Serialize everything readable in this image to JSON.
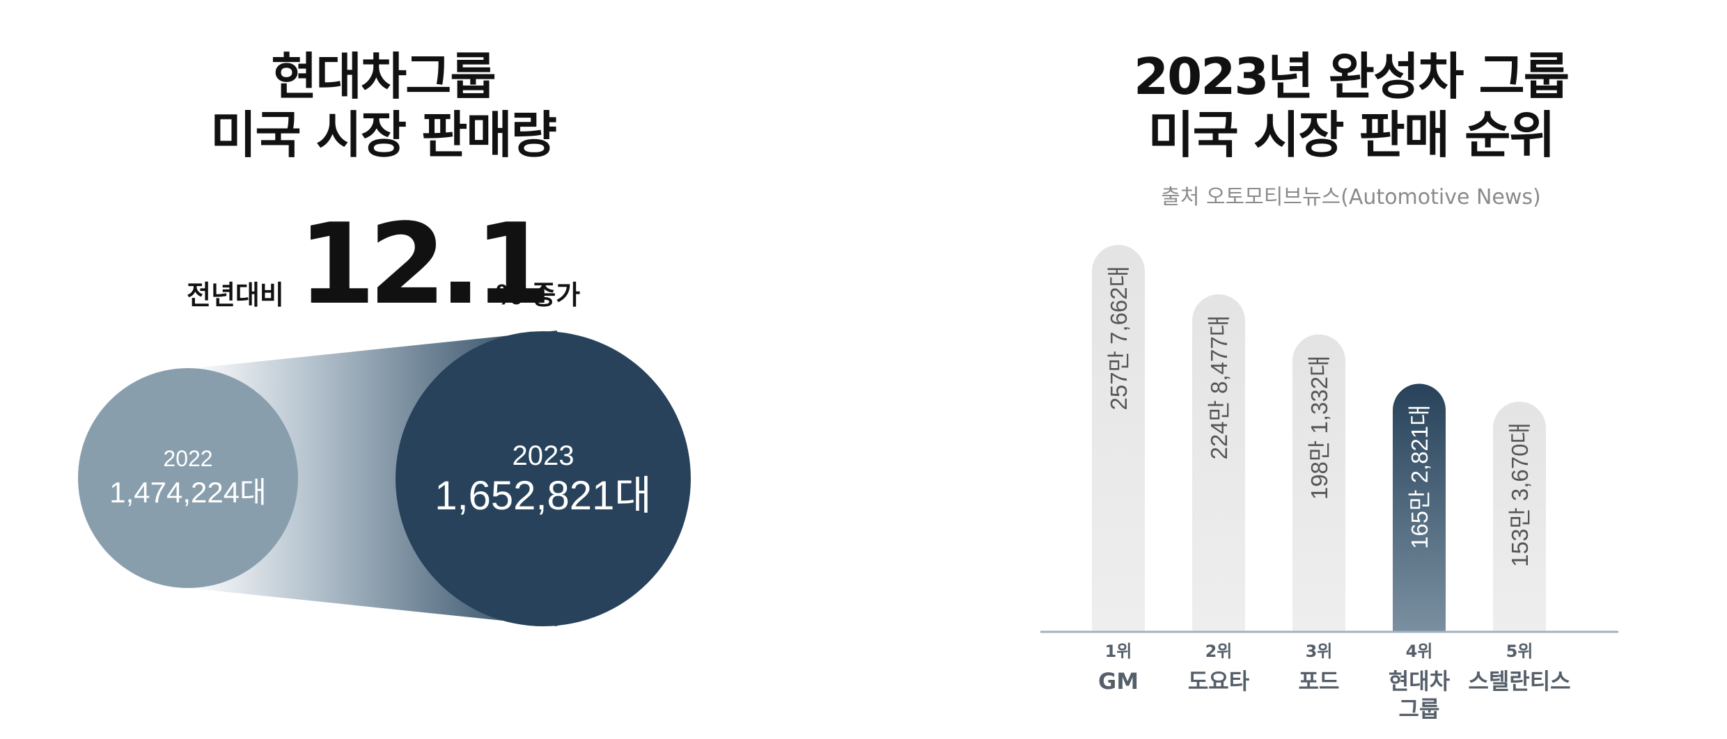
{
  "left_panel": {
    "title_line1": "현대차그룹",
    "title_line2": "미국 시장 판매량",
    "growth": {
      "prefix": "전년대비",
      "value": "12.1",
      "suffix": "% 증가",
      "percent": 12.1
    },
    "years": [
      {
        "year": "2022",
        "sales_label": "1,474,224대",
        "sales": 1474224,
        "color": "#889eac"
      },
      {
        "year": "2023",
        "sales_label": "1,652,821대",
        "sales": 1652821,
        "color": "#27425a"
      }
    ]
  },
  "chart_data": {
    "type": "bar",
    "title": "2023년 완성차 그룹\n미국 시장 판매 순위",
    "subtitle": "출처  오토모티브뉴스(Automotive News)",
    "categories": [
      "1위 GM",
      "2위 도요타",
      "3위 포드",
      "4위 현대차그룹",
      "5위 스텔란티스"
    ],
    "values": [
      2577662,
      2248477,
      1981332,
      1652821,
      1533670
    ],
    "value_labels": [
      "257만 7,662대",
      "224만 8,477대",
      "198만 1,332대",
      "165만 2,821대",
      "153만 3,670대"
    ],
    "ylim": [
      0,
      2577662
    ],
    "highlight_index": 3,
    "bars": [
      {
        "rank": "1위",
        "name_lines": [
          "GM"
        ]
      },
      {
        "rank": "2위",
        "name_lines": [
          "도요타"
        ]
      },
      {
        "rank": "3위",
        "name_lines": [
          "포드"
        ]
      },
      {
        "rank": "4위",
        "name_lines": [
          "현대차",
          "그룹"
        ]
      },
      {
        "rank": "5위",
        "name_lines": [
          "스텔란티스"
        ]
      }
    ]
  },
  "colors": {
    "highlight": "#27425a",
    "bar": "#e6e6e6",
    "bar_text": "#555555",
    "axis": "#9fb2c0",
    "circle_2022": "#889eac",
    "circle_2023": "#27425a"
  }
}
